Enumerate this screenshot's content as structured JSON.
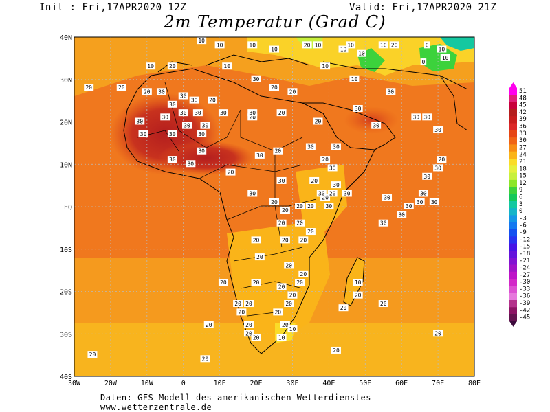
{
  "header": {
    "init": "Init : Fri,17APR2020 12Z",
    "valid": "Valid: Fri,17APR2020 21Z",
    "title": "2m Temperatur (Grad C)"
  },
  "map": {
    "y_axis_labels": [
      "40N",
      "30N",
      "20N",
      "10N",
      "EQ",
      "10S",
      "20S",
      "30S",
      "40S"
    ],
    "x_axis_labels": [
      "30W",
      "20W",
      "10W",
      "0",
      "10E",
      "20E",
      "30E",
      "40E",
      "50E",
      "60E",
      "70E",
      "80E"
    ],
    "contour_labels": [
      {
        "t": "10",
        "lon": 5,
        "lat": 39
      },
      {
        "t": "10",
        "lon": 10,
        "lat": 38
      },
      {
        "t": "10",
        "lon": 19,
        "lat": 38
      },
      {
        "t": "10",
        "lon": 25,
        "lat": 37
      },
      {
        "t": "20",
        "lon": 34,
        "lat": 38
      },
      {
        "t": "10",
        "lon": 37,
        "lat": 38
      },
      {
        "t": "10",
        "lon": 44,
        "lat": 37
      },
      {
        "t": "10",
        "lon": 46,
        "lat": 38
      },
      {
        "t": "10",
        "lon": 49,
        "lat": 36
      },
      {
        "t": "10",
        "lon": 55,
        "lat": 38
      },
      {
        "t": "20",
        "lon": 58,
        "lat": 38
      },
      {
        "t": "0",
        "lon": 67,
        "lat": 38
      },
      {
        "t": "10",
        "lon": 71,
        "lat": 37
      },
      {
        "t": "0",
        "lon": 66,
        "lat": 34
      },
      {
        "t": "10",
        "lon": 72,
        "lat": 35
      },
      {
        "t": "10",
        "lon": 12,
        "lat": 33
      },
      {
        "t": "30",
        "lon": 20,
        "lat": 30
      },
      {
        "t": "10",
        "lon": -9,
        "lat": 33
      },
      {
        "t": "20",
        "lon": -3,
        "lat": 33
      },
      {
        "t": "20",
        "lon": -26,
        "lat": 28
      },
      {
        "t": "20",
        "lon": -17,
        "lat": 28
      },
      {
        "t": "20",
        "lon": -10,
        "lat": 27
      },
      {
        "t": "30",
        "lon": -6,
        "lat": 27
      },
      {
        "t": "30",
        "lon": 0,
        "lat": 26
      },
      {
        "t": "30",
        "lon": 3,
        "lat": 25
      },
      {
        "t": "20",
        "lon": 8,
        "lat": 25
      },
      {
        "t": "20",
        "lon": 25,
        "lat": 28
      },
      {
        "t": "20",
        "lon": 30,
        "lat": 27
      },
      {
        "t": "30",
        "lon": 57,
        "lat": 27
      },
      {
        "t": "10",
        "lon": 47,
        "lat": 30
      },
      {
        "t": "10",
        "lon": 39,
        "lat": 33
      },
      {
        "t": "30",
        "lon": -3,
        "lat": 24
      },
      {
        "t": "30",
        "lon": 0,
        "lat": 22
      },
      {
        "t": "30",
        "lon": 4,
        "lat": 22
      },
      {
        "t": "30",
        "lon": 11,
        "lat": 22
      },
      {
        "t": "30",
        "lon": -12,
        "lat": 20
      },
      {
        "t": "30",
        "lon": -5,
        "lat": 21
      },
      {
        "t": "30",
        "lon": 1,
        "lat": 19
      },
      {
        "t": "30",
        "lon": 6,
        "lat": 19
      },
      {
        "t": "30",
        "lon": -11,
        "lat": 17
      },
      {
        "t": "30",
        "lon": -3,
        "lat": 17
      },
      {
        "t": "30",
        "lon": 5,
        "lat": 17
      },
      {
        "t": "20",
        "lon": 19,
        "lat": 21
      },
      {
        "t": "30",
        "lon": 19,
        "lat": 22
      },
      {
        "t": "20",
        "lon": 27,
        "lat": 22
      },
      {
        "t": "20",
        "lon": 37,
        "lat": 20
      },
      {
        "t": "30",
        "lon": 48,
        "lat": 23
      },
      {
        "t": "30",
        "lon": 53,
        "lat": 19
      },
      {
        "t": "30",
        "lon": 64,
        "lat": 21
      },
      {
        "t": "30",
        "lon": 67,
        "lat": 21
      },
      {
        "t": "30",
        "lon": 70,
        "lat": 18
      },
      {
        "t": "30",
        "lon": -3,
        "lat": 11
      },
      {
        "t": "30",
        "lon": 2,
        "lat": 10
      },
      {
        "t": "30",
        "lon": 5,
        "lat": 13
      },
      {
        "t": "20",
        "lon": 13,
        "lat": 8
      },
      {
        "t": "30",
        "lon": 21,
        "lat": 12
      },
      {
        "t": "20",
        "lon": 26,
        "lat": 13
      },
      {
        "t": "30",
        "lon": 35,
        "lat": 14
      },
      {
        "t": "30",
        "lon": 42,
        "lat": 14
      },
      {
        "t": "20",
        "lon": 39,
        "lat": 11
      },
      {
        "t": "30",
        "lon": 41,
        "lat": 9
      },
      {
        "t": "30",
        "lon": 42,
        "lat": 5
      },
      {
        "t": "30",
        "lon": 45,
        "lat": 3
      },
      {
        "t": "30",
        "lon": 27,
        "lat": 6
      },
      {
        "t": "30",
        "lon": 19,
        "lat": 3
      },
      {
        "t": "20",
        "lon": 36,
        "lat": 6
      },
      {
        "t": "20",
        "lon": 39,
        "lat": 2
      },
      {
        "t": "30",
        "lon": 38,
        "lat": 3
      },
      {
        "t": "20",
        "lon": 41,
        "lat": 3
      },
      {
        "t": "30",
        "lon": 40,
        "lat": 0
      },
      {
        "t": "20",
        "lon": 25,
        "lat": 1
      },
      {
        "t": "20",
        "lon": 28,
        "lat": -1
      },
      {
        "t": "20",
        "lon": 32,
        "lat": 0
      },
      {
        "t": "20",
        "lon": 35,
        "lat": 0
      },
      {
        "t": "30",
        "lon": 56,
        "lat": 2
      },
      {
        "t": "30",
        "lon": 62,
        "lat": 0
      },
      {
        "t": "30",
        "lon": 65,
        "lat": 1
      },
      {
        "t": "30",
        "lon": 69,
        "lat": 1
      },
      {
        "t": "30",
        "lon": 60,
        "lat": -2
      },
      {
        "t": "30",
        "lon": 55,
        "lat": -4
      },
      {
        "t": "30",
        "lon": 66,
        "lat": 3
      },
      {
        "t": "30",
        "lon": 67,
        "lat": 7
      },
      {
        "t": "30",
        "lon": 70,
        "lat": 9
      },
      {
        "t": "20",
        "lon": 71,
        "lat": 11
      },
      {
        "t": "20",
        "lon": 27,
        "lat": -4
      },
      {
        "t": "20",
        "lon": 32,
        "lat": -4
      },
      {
        "t": "20",
        "lon": 35,
        "lat": -6
      },
      {
        "t": "20",
        "lon": 33,
        "lat": -8
      },
      {
        "t": "20",
        "lon": 20,
        "lat": -8
      },
      {
        "t": "20",
        "lon": 28,
        "lat": -8
      },
      {
        "t": "20",
        "lon": 21,
        "lat": -12
      },
      {
        "t": "20",
        "lon": 29,
        "lat": -14
      },
      {
        "t": "20",
        "lon": 33,
        "lat": -16
      },
      {
        "t": "20",
        "lon": 20,
        "lat": -18
      },
      {
        "t": "20",
        "lon": 27,
        "lat": -19
      },
      {
        "t": "20",
        "lon": 32,
        "lat": -18
      },
      {
        "t": "20",
        "lon": 11,
        "lat": -18
      },
      {
        "t": "20",
        "lon": 15,
        "lat": -23
      },
      {
        "t": "20",
        "lon": 18,
        "lat": -23
      },
      {
        "t": "20",
        "lon": 16,
        "lat": -25
      },
      {
        "t": "20",
        "lon": 30,
        "lat": -21
      },
      {
        "t": "20",
        "lon": 29,
        "lat": -23
      },
      {
        "t": "20",
        "lon": 26,
        "lat": -25
      },
      {
        "t": "10",
        "lon": 48,
        "lat": -18
      },
      {
        "t": "20",
        "lon": 48,
        "lat": -21
      },
      {
        "t": "20",
        "lon": 44,
        "lat": -24
      },
      {
        "t": "20",
        "lon": 55,
        "lat": -23
      },
      {
        "t": "20",
        "lon": 7,
        "lat": -28
      },
      {
        "t": "20",
        "lon": 18,
        "lat": -28
      },
      {
        "t": "20",
        "lon": 18,
        "lat": -30
      },
      {
        "t": "20",
        "lon": 20,
        "lat": -31
      },
      {
        "t": "20",
        "lon": 28,
        "lat": -28
      },
      {
        "t": "10",
        "lon": 30,
        "lat": -29
      },
      {
        "t": "10",
        "lon": 27,
        "lat": -31
      },
      {
        "t": "20",
        "lon": 70,
        "lat": -30
      },
      {
        "t": "20",
        "lon": -25,
        "lat": -35
      },
      {
        "t": "20",
        "lon": 6,
        "lat": -36
      },
      {
        "t": "20",
        "lon": 42,
        "lat": -34
      }
    ]
  },
  "legend": {
    "labels": [
      "51",
      "48",
      "45",
      "42",
      "39",
      "36",
      "33",
      "30",
      "27",
      "24",
      "21",
      "18",
      "15",
      "12",
      "9",
      "6",
      "3",
      "0",
      "-3",
      "-6",
      "-9",
      "-12",
      "-15",
      "-18",
      "-21",
      "-24",
      "-27",
      "-30",
      "-33",
      "-36",
      "-39",
      "-42",
      "-45"
    ],
    "colors": [
      "#f0e",
      "#e02078",
      "#c8003c",
      "#b41e1e",
      "#c81e1e",
      "#dc2828",
      "#e64614",
      "#f06414",
      "#f78c14",
      "#fab419",
      "#fadc28",
      "#e6f03c",
      "#c8f03c",
      "#8ce628",
      "#3cd23c",
      "#14c85a",
      "#14c8a0",
      "#14b4c8",
      "#1496e6",
      "#1478f0",
      "#1450f0",
      "#2832f0",
      "#4614e6",
      "#6414dc",
      "#8214d2",
      "#a014c8",
      "#be14c8",
      "#d228c8",
      "#dc50d2",
      "#e678dc",
      "#b4328c",
      "#8c1464",
      "#641450"
    ]
  },
  "footer": {
    "line1": "Daten: GFS-Modell des amerikanischen Wetterdienstes",
    "line2": "www.wetterzentrale.de"
  }
}
